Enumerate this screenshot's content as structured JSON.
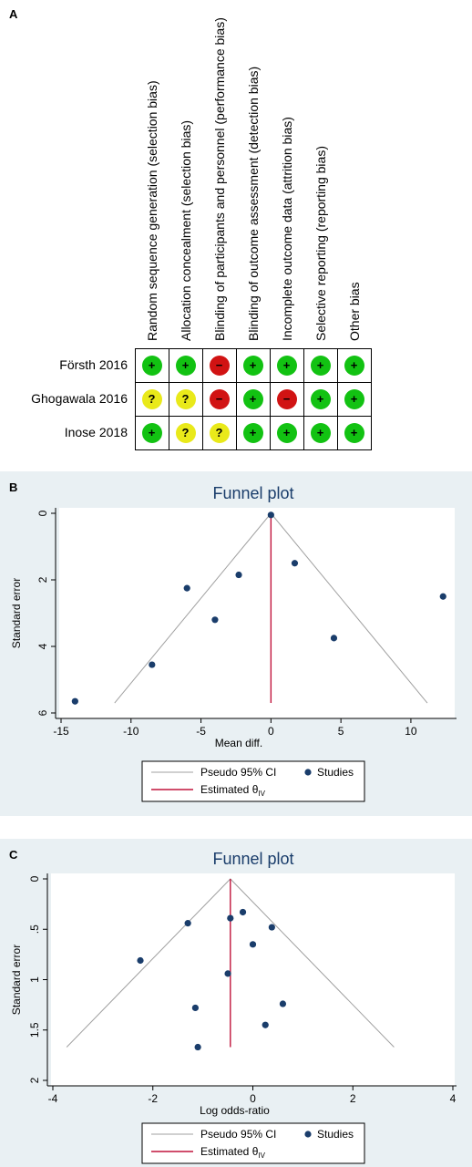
{
  "panel_letters": {
    "a": "A",
    "b": "B",
    "c": "C"
  },
  "risk_of_bias": {
    "domains": [
      "Random sequence generation (selection bias)",
      "Allocation concealment (selection bias)",
      "Blinding of participants and personnel (performance bias)",
      "Blinding of outcome assessment (detection bias)",
      "Incomplete outcome data (attrition bias)",
      "Selective reporting (reporting bias)",
      "Other bias"
    ],
    "studies": [
      {
        "name": "Försth 2016",
        "judgements": [
          "low",
          "low",
          "high",
          "low",
          "low",
          "low",
          "low"
        ]
      },
      {
        "name": "Ghogawala 2016",
        "judgements": [
          "unclear",
          "unclear",
          "high",
          "low",
          "high",
          "low",
          "low"
        ]
      },
      {
        "name": "Inose 2018",
        "judgements": [
          "low",
          "unclear",
          "unclear",
          "low",
          "low",
          "low",
          "low"
        ]
      }
    ],
    "symbols": {
      "low": "+",
      "high": "−",
      "unclear": "?"
    },
    "colors": {
      "low": "#12c212",
      "high": "#d11313",
      "unclear": "#e9e91a"
    }
  },
  "chart_data": [
    {
      "type": "scatter",
      "title": "Funnel plot",
      "xlabel": "Mean diff.",
      "ylabel": "Standard error",
      "xlim": [
        -15,
        13
      ],
      "ylim": [
        0,
        6
      ],
      "y_reversed": true,
      "xticks": [
        -15,
        -10,
        -5,
        0,
        5,
        10
      ],
      "xtick_labels": [
        "-15",
        "-10",
        "-5",
        "0",
        "5",
        "10"
      ],
      "yticks": [
        0,
        2,
        4,
        6
      ],
      "ytick_labels": [
        "0",
        "2",
        "4",
        "6"
      ],
      "estimate": 0,
      "ci_bottom_se": 5.7,
      "series": [
        {
          "name": "Studies",
          "x": [
            0,
            1.7,
            -2.3,
            12.3,
            -6,
            -4,
            4.5,
            -8.5,
            -14
          ],
          "y": [
            0.05,
            1.5,
            1.85,
            2.5,
            2.25,
            3.2,
            3.75,
            4.55,
            5.65
          ]
        }
      ],
      "legend": {
        "ci_label": "Pseudo 95% CI",
        "studies_label": "Studies",
        "estimate_label": "Estimated θ",
        "estimate_sub": "IV"
      },
      "colors": {
        "points": "#1a3d6b",
        "ci": "#a0a0a0",
        "estimate": "#c0143c",
        "background": "#e9f0f3"
      }
    },
    {
      "type": "scatter",
      "title": "Funnel plot",
      "xlabel": "Log odds-ratio",
      "ylabel": "Standard error",
      "xlim": [
        -4,
        4
      ],
      "ylim": [
        0,
        2
      ],
      "y_reversed": true,
      "xticks": [
        -4,
        -2,
        0,
        2,
        4
      ],
      "xtick_labels": [
        "-4",
        "-2",
        "0",
        "2",
        "4"
      ],
      "yticks": [
        0,
        0.5,
        1,
        1.5,
        2
      ],
      "ytick_labels": [
        "0",
        ".5",
        "1",
        "1.5",
        "2"
      ],
      "estimate": -0.45,
      "ci_bottom_se": 1.67,
      "series": [
        {
          "name": "Studies",
          "x": [
            -0.2,
            -0.45,
            -1.3,
            0.38,
            0.0,
            -2.25,
            -0.5,
            0.6,
            -1.15,
            0.25,
            -1.1
          ],
          "y": [
            0.33,
            0.39,
            0.44,
            0.48,
            0.65,
            0.81,
            0.94,
            1.24,
            1.28,
            1.45,
            1.67
          ]
        }
      ],
      "legend": {
        "ci_label": "Pseudo 95% CI",
        "studies_label": "Studies",
        "estimate_label": "Estimated θ",
        "estimate_sub": "IV"
      },
      "colors": {
        "points": "#1a3d6b",
        "ci": "#a0a0a0",
        "estimate": "#c0143c",
        "background": "#e9f0f3"
      }
    }
  ]
}
